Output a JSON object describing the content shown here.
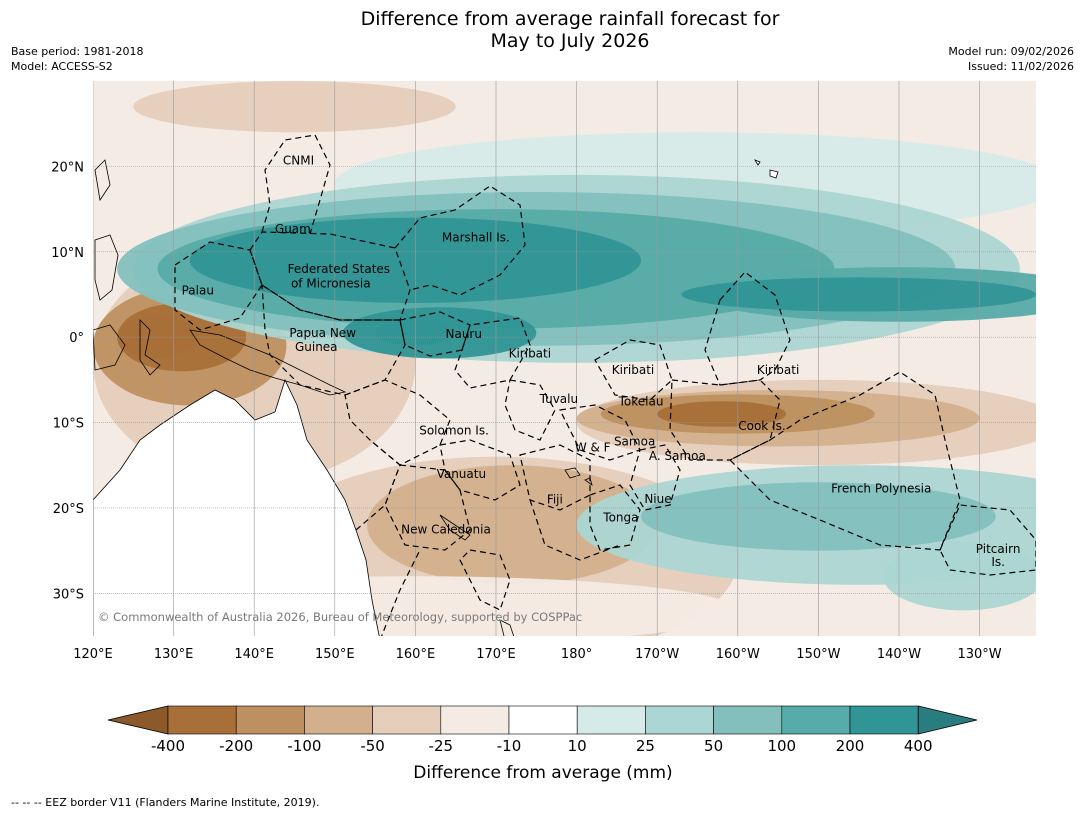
{
  "title_line1": "Difference from average rainfall forecast for",
  "title_line2": "May to July 2026",
  "meta_left": {
    "base_period": "Base period: 1981-2018",
    "model": "Model: ACCESS-S2"
  },
  "meta_right": {
    "model_run": "Model run: 09/02/2026",
    "issued": "Issued: 11/02/2026"
  },
  "copyright": "© Commonwealth of Australia 2026, Bureau of Meteorology, supported by COSPPac",
  "footer": "--  --  -- EEZ border V11 (Flanders Marine Institute, 2019).",
  "colors": {
    "ocean_missing": "#ffffff",
    "land": "#ffffff",
    "coast": "#000000",
    "grid": "#9a9a9a"
  },
  "map": {
    "type": "map",
    "title": "Difference from average rainfall forecast for May to July 2026",
    "lon_range": [
      120,
      237
    ],
    "lat_range": [
      -35,
      30
    ],
    "x_ticks": [
      {
        "lon": 120,
        "label": "120°E"
      },
      {
        "lon": 130,
        "label": "130°E"
      },
      {
        "lon": 140,
        "label": "140°E"
      },
      {
        "lon": 150,
        "label": "150°E"
      },
      {
        "lon": 160,
        "label": "160°E"
      },
      {
        "lon": 170,
        "label": "170°E"
      },
      {
        "lon": 180,
        "label": "180°"
      },
      {
        "lon": 190,
        "label": "170°W"
      },
      {
        "lon": 200,
        "label": "160°W"
      },
      {
        "lon": 210,
        "label": "150°W"
      },
      {
        "lon": 220,
        "label": "140°W"
      },
      {
        "lon": 230,
        "label": "130°W"
      }
    ],
    "y_ticks": [
      {
        "lat": 20,
        "label": "20°N"
      },
      {
        "lat": 10,
        "label": "10°N"
      },
      {
        "lat": 0,
        "label": "0°"
      },
      {
        "lat": -10,
        "label": "10°S"
      },
      {
        "lat": -20,
        "label": "20°S"
      },
      {
        "lat": -30,
        "label": "30°S"
      }
    ],
    "place_labels": [
      {
        "name": "CNMI",
        "lon": 145.5,
        "lat": 20.2
      },
      {
        "name": "Guam",
        "lon": 144.8,
        "lat": 12.2
      },
      {
        "name": "Marshall Is.",
        "lon": 167.5,
        "lat": 11.2
      },
      {
        "name": "Federated States",
        "lon": 150.5,
        "lat": 7.5
      },
      {
        "name": "of Micronesia",
        "lon": 149.5,
        "lat": 5.8
      },
      {
        "name": "Palau",
        "lon": 133,
        "lat": 5.0
      },
      {
        "name": "Papua New",
        "lon": 148.5,
        "lat": 0.0
      },
      {
        "name": "Guinea",
        "lon": 147.7,
        "lat": -1.6
      },
      {
        "name": "Nauru",
        "lon": 166.0,
        "lat": -0.1
      },
      {
        "name": "Kiribati",
        "lon": 174.2,
        "lat": -2.4
      },
      {
        "name": "Kiribati",
        "lon": 187.0,
        "lat": -4.3
      },
      {
        "name": "Kiribati",
        "lon": 205.0,
        "lat": -4.3
      },
      {
        "name": "Tuvalu",
        "lon": 177.8,
        "lat": -7.7
      },
      {
        "name": "Tokelau",
        "lon": 188.0,
        "lat": -8.0
      },
      {
        "name": "Cook Is.",
        "lon": 203.0,
        "lat": -10.9
      },
      {
        "name": "Solomon Is.",
        "lon": 164.8,
        "lat": -11.4
      },
      {
        "name": "W & F",
        "lon": 182.0,
        "lat": -13.4
      },
      {
        "name": "Samoa",
        "lon": 187.2,
        "lat": -12.7
      },
      {
        "name": "A. Samoa",
        "lon": 192.5,
        "lat": -14.4
      },
      {
        "name": "Vanuatu",
        "lon": 165.7,
        "lat": -16.5
      },
      {
        "name": "Fiji",
        "lon": 177.3,
        "lat": -19.5
      },
      {
        "name": "Niue",
        "lon": 190.1,
        "lat": -19.4
      },
      {
        "name": "French Polynesia",
        "lon": 217.8,
        "lat": -18.2
      },
      {
        "name": "Tonga",
        "lon": 185.5,
        "lat": -21.6
      },
      {
        "name": "New Caledonia",
        "lon": 163.8,
        "lat": -23.0
      },
      {
        "name": "Pitcairn",
        "lon": 232.3,
        "lat": -25.3
      },
      {
        "name": "Is.",
        "lon": 232.3,
        "lat": -26.8
      }
    ],
    "colorbar": {
      "title": "Difference from average (mm)",
      "ticks": [
        "-400",
        "-200",
        "-100",
        "-50",
        "-25",
        "-10",
        "10",
        "25",
        "50",
        "100",
        "200",
        "400"
      ],
      "colors": [
        "#a87038",
        "#be905f",
        "#d3b08d",
        "#e5cfba",
        "#f4ebe4",
        "#ffffff",
        "#d6ebe9",
        "#acd6d3",
        "#83c0bd",
        "#57aba8",
        "#319595"
      ],
      "extend_low": "#8c5a2a",
      "extend_high": "#2a7d7e"
    },
    "anomaly_regions": [
      {
        "level": 2,
        "sign": -1,
        "lon": 140,
        "lat": -3,
        "rx": 20,
        "ry": 14
      },
      {
        "level": 4,
        "sign": -1,
        "lon": 132,
        "lat": -1,
        "rx": 12,
        "ry": 7
      },
      {
        "level": 5,
        "sign": -1,
        "lon": 131,
        "lat": 0,
        "rx": 8,
        "ry": 4
      },
      {
        "level": 6,
        "sign": -1,
        "lon": 128,
        "lat": 0,
        "rx": 5,
        "ry": 2.5
      },
      {
        "level": 2,
        "sign": -1,
        "lon": 170,
        "lat": -26,
        "rx": 30,
        "ry": 12
      },
      {
        "level": 3,
        "sign": -1,
        "lon": 172,
        "lat": -22,
        "rx": 18,
        "ry": 7
      },
      {
        "level": 1,
        "sign": -1,
        "lon": 160,
        "lat": -32,
        "rx": 40,
        "ry": 4
      },
      {
        "level": 2,
        "sign": -1,
        "lon": 210,
        "lat": -10,
        "rx": 30,
        "ry": 5
      },
      {
        "level": 3,
        "sign": -1,
        "lon": 205,
        "lat": -9.5,
        "rx": 25,
        "ry": 3.3
      },
      {
        "level": 4,
        "sign": -1,
        "lon": 200,
        "lat": -9,
        "rx": 17,
        "ry": 2.3
      },
      {
        "level": 5,
        "sign": -1,
        "lon": 198,
        "lat": -9,
        "rx": 8,
        "ry": 1.5
      },
      {
        "level": 2,
        "sign": -1,
        "lon": 145,
        "lat": 27,
        "rx": 20,
        "ry": 3
      },
      {
        "level": 1,
        "sign": 1,
        "lon": 195,
        "lat": 18,
        "rx": 45,
        "ry": 6
      },
      {
        "level": 2,
        "sign": 1,
        "lon": 180,
        "lat": 8,
        "rx": 55,
        "ry": 11
      },
      {
        "level": 3,
        "sign": 1,
        "lon": 175,
        "lat": 8,
        "rx": 52,
        "ry": 9
      },
      {
        "level": 4,
        "sign": 1,
        "lon": 170,
        "lat": 8,
        "rx": 42,
        "ry": 7
      },
      {
        "level": 5,
        "sign": 1,
        "lon": 160,
        "lat": 9,
        "rx": 28,
        "ry": 5
      },
      {
        "level": 4,
        "sign": 1,
        "lon": 220,
        "lat": 5,
        "rx": 25,
        "ry": 3.2
      },
      {
        "level": 5,
        "sign": 1,
        "lon": 215,
        "lat": 5,
        "rx": 22,
        "ry": 2
      },
      {
        "level": 5,
        "sign": 1,
        "lon": 163,
        "lat": 0.5,
        "rx": 12,
        "ry": 3
      },
      {
        "level": 6,
        "sign": 1,
        "lon": 160,
        "lat": 0.5,
        "rx": 5,
        "ry": 1.5
      },
      {
        "level": 2,
        "sign": 1,
        "lon": 215,
        "lat": -22,
        "rx": 35,
        "ry": 7
      },
      {
        "level": 3,
        "sign": 1,
        "lon": 210,
        "lat": -21,
        "rx": 22,
        "ry": 4
      },
      {
        "level": 2,
        "sign": 1,
        "lon": 228,
        "lat": -28,
        "rx": 10,
        "ry": 4
      }
    ]
  }
}
